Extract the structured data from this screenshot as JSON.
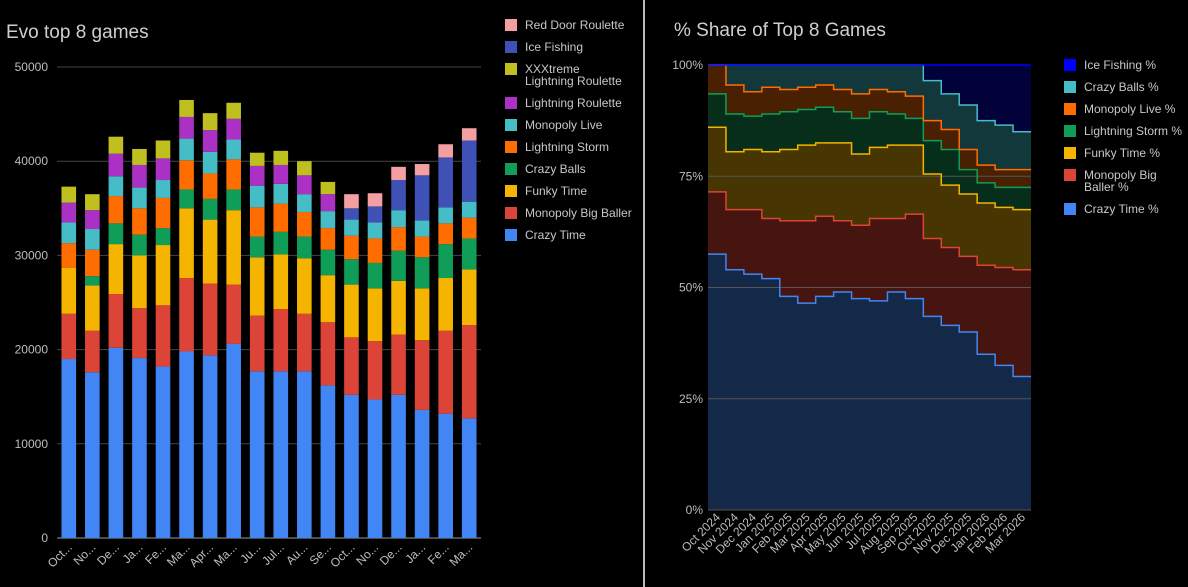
{
  "chart_data": [
    {
      "type": "bar",
      "stacked": true,
      "title": "Evo top 8 games",
      "xlabel": "",
      "ylabel": "",
      "ylim": [
        0,
        50000
      ],
      "yticks": [
        "0",
        "10000",
        "20000",
        "30000",
        "40000",
        "50000"
      ],
      "grid": true,
      "legend_position": "right",
      "categories": [
        "Oct...",
        "No...",
        "De...",
        "Ja...",
        "Fe...",
        "Ma...",
        "Apr...",
        "Ma...",
        "Ju...",
        "Jul...",
        "Au...",
        "Se...",
        "Oct...",
        "No...",
        "De...",
        "Ja...",
        "Fe...",
        "Ma..."
      ],
      "series": [
        {
          "name": "Crazy Time",
          "color": "#4285f4",
          "values": [
            19000,
            17600,
            20200,
            19100,
            18200,
            19800,
            19400,
            20600,
            17700,
            17700,
            17700,
            16200,
            15200,
            14700,
            15200,
            13600,
            13200,
            12700
          ]
        },
        {
          "name": "Monopoly Big Baller",
          "color": "#db4437",
          "values": [
            4800,
            4400,
            5700,
            5300,
            6500,
            7800,
            7600,
            6300,
            5900,
            6600,
            6100,
            6700,
            6100,
            6200,
            6400,
            7400,
            8800,
            9900
          ]
        },
        {
          "name": "Funky Time",
          "color": "#f4b400",
          "values": [
            4900,
            4800,
            5300,
            5600,
            6400,
            7400,
            6800,
            7900,
            6200,
            5800,
            5900,
            5000,
            5600,
            5600,
            5700,
            5500,
            5600,
            5900
          ]
        },
        {
          "name": "Crazy Balls",
          "color": "#0f9d58",
          "values": [
            0,
            1000,
            2200,
            2200,
            1800,
            2000,
            2200,
            2200,
            2200,
            2400,
            2300,
            2700,
            2700,
            2700,
            3200,
            3300,
            3600,
            3300
          ]
        },
        {
          "name": "Lightning Storm",
          "color": "#ff6d01",
          "values": [
            2600,
            2800,
            2900,
            2800,
            3200,
            3100,
            2700,
            3200,
            3100,
            3000,
            2600,
            2300,
            2500,
            2600,
            2500,
            2200,
            2200,
            2200
          ]
        },
        {
          "name": "Monopoly Live",
          "color": "#46bdc6",
          "values": [
            2200,
            2200,
            2100,
            2200,
            1900,
            2300,
            2300,
            2100,
            2300,
            2100,
            1900,
            1800,
            1700,
            1700,
            1800,
            1700,
            1700,
            1700
          ]
        },
        {
          "name": "Lightning Roulette",
          "color": "#ab30c4",
          "values": [
            2100,
            2000,
            2400,
            2400,
            2300,
            2300,
            2300,
            2200,
            2100,
            2000,
            2000,
            1800,
            0,
            0,
            0,
            0,
            0,
            0
          ]
        },
        {
          "name": "XXXtreme Lightning Roulette",
          "color": "#bfbf1f",
          "values": [
            1700,
            1700,
            1800,
            1700,
            1900,
            1800,
            1800,
            1700,
            1400,
            1500,
            1500,
            1300,
            0,
            0,
            0,
            0,
            0,
            0
          ]
        },
        {
          "name": "Ice Fishing",
          "color": "#3f51b5",
          "values": [
            0,
            0,
            0,
            0,
            0,
            0,
            0,
            0,
            0,
            0,
            0,
            0,
            1200,
            1700,
            3200,
            4800,
            5300,
            6500
          ]
        },
        {
          "name": "Red Door Roulette",
          "color": "#f4a0a3",
          "values": [
            0,
            0,
            0,
            0,
            0,
            0,
            0,
            0,
            0,
            0,
            0,
            0,
            1500,
            1400,
            1400,
            1200,
            1400,
            1300
          ]
        }
      ]
    },
    {
      "type": "area",
      "stacked": true,
      "step": true,
      "title": "% Share of Top 8 Games",
      "xlabel": "",
      "ylabel": "",
      "ylim": [
        0,
        100
      ],
      "yticks": [
        "0%",
        "25%",
        "50%",
        "75%",
        "100%"
      ],
      "grid": true,
      "legend_position": "right",
      "categories": [
        "Oct 2024",
        "Nov 2024",
        "Dec 2024",
        "Jan 2025",
        "Feb 2025",
        "Mar 2025",
        "Apr 2025",
        "May 2025",
        "Jun 2025",
        "Jul 2025",
        "Aug 2025",
        "Sep 2025",
        "Oct 2025",
        "Nov 2025",
        "Dec 2025",
        "Jan 2026",
        "Feb 2026",
        "Mar 2026"
      ],
      "series": [
        {
          "name": "Crazy Time %",
          "color": "#4285f4",
          "fill": "#142847",
          "values": [
            57.5,
            54,
            53,
            52,
            48,
            46.5,
            48,
            49,
            47.5,
            47,
            49,
            47.5,
            43.5,
            41.5,
            40,
            35,
            32.5,
            30
          ]
        },
        {
          "name": "Monopoly Big Baller %",
          "color": "#db4437",
          "fill": "#461510",
          "values": [
            14,
            13.5,
            14.5,
            13.5,
            17,
            18.5,
            18,
            16,
            16.5,
            18.5,
            16.5,
            19,
            17.5,
            17.5,
            17,
            20,
            22,
            24
          ]
        },
        {
          "name": "Funky Time %",
          "color": "#f4b400",
          "fill": "#473602",
          "values": [
            14.5,
            13,
            13.5,
            15,
            16,
            17,
            16.5,
            17.5,
            16,
            16,
            16.5,
            15.5,
            14.5,
            14,
            14,
            14,
            13.5,
            13.5
          ]
        },
        {
          "name": "Lightning Storm %",
          "color": "#0f9d58",
          "fill": "#062e1a",
          "values": [
            7.5,
            8.5,
            7.5,
            8.5,
            8.5,
            8,
            8,
            7,
            8,
            8,
            7,
            6,
            7.5,
            8,
            5.5,
            4.5,
            4.5,
            5
          ]
        },
        {
          "name": "Monopoly Live %",
          "color": "#ff6d01",
          "fill": "#4a2002",
          "values": [
            6.5,
            6.5,
            5.5,
            6,
            5,
            5,
            5,
            5,
            5.5,
            5,
            5,
            5,
            4.5,
            4.5,
            4.5,
            4,
            4,
            4
          ]
        },
        {
          "name": "Crazy Balls %",
          "color": "#46bdc6",
          "fill": "#12383b",
          "values": [
            0,
            4.5,
            6,
            5,
            5.5,
            5,
            4.5,
            5.5,
            6.5,
            5.5,
            6,
            7,
            9,
            8,
            10,
            10,
            10,
            8.5
          ]
        },
        {
          "name": "Ice Fishing %",
          "color": "#0000ff",
          "fill": "#02023a",
          "values": [
            0,
            0,
            0,
            0,
            0,
            0,
            0,
            0,
            0,
            0,
            0,
            0,
            3.5,
            6.5,
            9,
            12.5,
            13.5,
            15
          ]
        }
      ]
    }
  ]
}
